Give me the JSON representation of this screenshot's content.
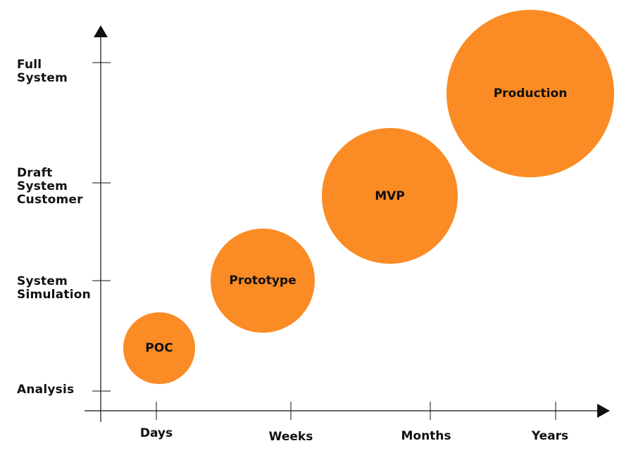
{
  "diagram": {
    "y_levels": [
      "Analysis",
      "System\nSimulation",
      "Draft\nSystem\nCustomer",
      "Full\nSystem"
    ],
    "x_levels": [
      "Days",
      "Weeks",
      "Months",
      "Years"
    ],
    "stages": [
      {
        "label": "POC"
      },
      {
        "label": "Prototype"
      },
      {
        "label": "MVP"
      },
      {
        "label": "Production"
      }
    ],
    "colors": {
      "bubble": "#fb8b24",
      "axis": "#111111",
      "text": "#111111"
    }
  }
}
